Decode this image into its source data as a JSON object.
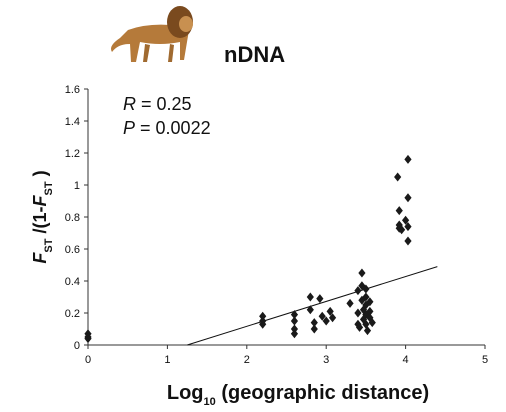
{
  "chart_data": {
    "type": "scatter",
    "title": "nDNA",
    "annotations": [
      {
        "symbol": "R",
        "text": " = 0.25"
      },
      {
        "symbol": "P",
        "text": " = 0.0022"
      }
    ],
    "xlabel": [
      "Log",
      "10",
      " (geographic distance)"
    ],
    "ylabel": [
      "F",
      "ST",
      " /(1-",
      "F",
      "ST",
      " )"
    ],
    "x": [
      0,
      0,
      0,
      2.2,
      2.2,
      2.2,
      2.6,
      2.6,
      2.6,
      2.6,
      2.8,
      2.8,
      2.85,
      2.85,
      2.92,
      2.95,
      3.0,
      3.05,
      3.08,
      3.3,
      3.4,
      3.4,
      3.4,
      3.42,
      3.45,
      3.45,
      3.45,
      3.47,
      3.47,
      3.5,
      3.5,
      3.5,
      3.5,
      3.5,
      3.52,
      3.55,
      3.55,
      3.55,
      3.58,
      3.9,
      3.92,
      3.92,
      3.92,
      3.95,
      4.0,
      4.03,
      4.03,
      4.03,
      4.03
    ],
    "values": [
      0.07,
      0.05,
      0.04,
      0.18,
      0.15,
      0.13,
      0.19,
      0.15,
      0.1,
      0.07,
      0.3,
      0.22,
      0.14,
      0.1,
      0.29,
      0.18,
      0.15,
      0.21,
      0.17,
      0.26,
      0.34,
      0.2,
      0.13,
      0.11,
      0.45,
      0.37,
      0.28,
      0.22,
      0.16,
      0.35,
      0.3,
      0.25,
      0.19,
      0.13,
      0.09,
      0.27,
      0.21,
      0.17,
      0.14,
      1.05,
      0.84,
      0.75,
      0.73,
      0.72,
      0.78,
      1.16,
      0.92,
      0.74,
      0.65
    ],
    "color": "#1a1a1a",
    "trend_line": {
      "x": [
        1.25,
        4.4
      ],
      "y": [
        0,
        0.49
      ]
    },
    "xlim": [
      0,
      5
    ],
    "xticks": [
      0,
      1,
      2,
      3,
      4,
      5
    ],
    "ylim": [
      0,
      1.6
    ],
    "yticks": [
      0,
      0.2,
      0.4,
      0.6,
      0.8,
      1,
      1.2,
      1.4,
      1.6
    ]
  }
}
